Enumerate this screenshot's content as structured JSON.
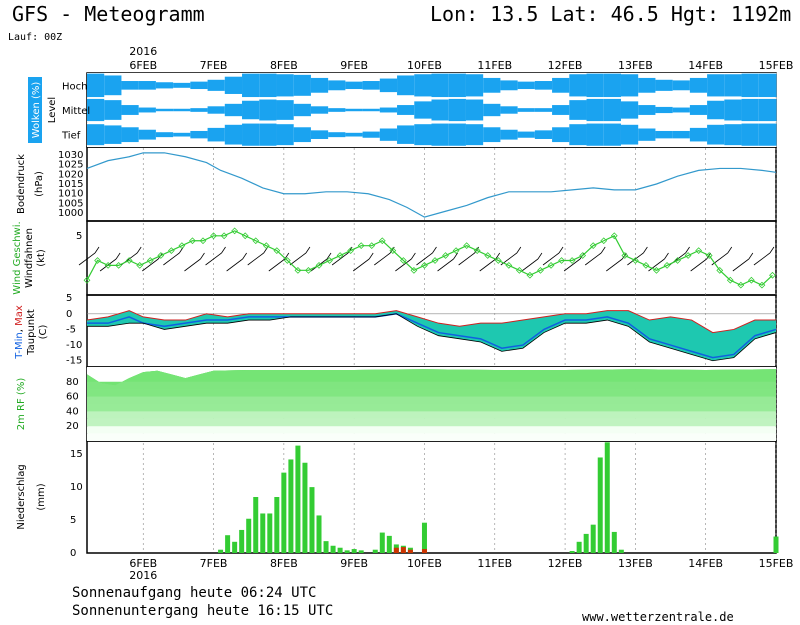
{
  "header": {
    "title": "GFS - Meteogramm",
    "location": "Lon: 13.5  Lat: 46.5  Hgt: 1192m",
    "run": "Lauf: 00Z"
  },
  "footer": {
    "sunrise": "Sonnenaufgang heute 06:24 UTC",
    "sunset": "Sonnenuntergang heute 16:15 UTC",
    "site": "www.wetterzentrale.de"
  },
  "colors": {
    "cloud": "#1aa3f0",
    "pressure": "#3399cc",
    "wind": "#33cc33",
    "rain": "#33cc33",
    "rain_other": "#cc3300",
    "rh": "#00dd00"
  },
  "chart_data": [
    {
      "type": "heatmap",
      "panel": "clouds",
      "ylabel": "Wolken (%)",
      "side_label": "Level",
      "levels": [
        "Hoch",
        "Mittel",
        "Tief"
      ],
      "x_ticks": [
        "6FEB",
        "7FEB",
        "8FEB",
        "9FEB",
        "10FEB",
        "11FEB",
        "12FEB",
        "13FEB",
        "14FEB",
        "15FEB"
      ],
      "year": "2016",
      "x_range_days": [
        5.2,
        15
      ],
      "cover_high": [
        95,
        80,
        35,
        35,
        25,
        20,
        30,
        45,
        70,
        95,
        95,
        90,
        85,
        60,
        40,
        30,
        35,
        55,
        80,
        90,
        95,
        95,
        90,
        60,
        40,
        30,
        35,
        60,
        90,
        95,
        95,
        90,
        60,
        45,
        40,
        60,
        90,
        90,
        95,
        95
      ],
      "cover_mid": [
        90,
        80,
        40,
        20,
        10,
        10,
        15,
        30,
        50,
        75,
        85,
        80,
        50,
        30,
        15,
        10,
        10,
        20,
        40,
        70,
        85,
        90,
        85,
        50,
        30,
        15,
        15,
        40,
        80,
        90,
        90,
        70,
        40,
        25,
        20,
        40,
        75,
        85,
        90,
        90
      ],
      "cover_low": [
        85,
        75,
        60,
        40,
        20,
        15,
        30,
        55,
        80,
        90,
        90,
        85,
        60,
        35,
        20,
        15,
        25,
        50,
        75,
        85,
        90,
        90,
        85,
        60,
        40,
        25,
        35,
        60,
        85,
        90,
        90,
        80,
        50,
        30,
        30,
        55,
        80,
        85,
        90,
        90
      ]
    },
    {
      "type": "line",
      "panel": "pressure",
      "ylabel": "Bodendruck (hPa)",
      "yticks": [
        1000,
        1005,
        1010,
        1015,
        1020,
        1025,
        1030
      ],
      "ylim": [
        996,
        1034
      ],
      "x_days": [
        5.2,
        5.5,
        5.8,
        6.0,
        6.3,
        6.6,
        6.9,
        7.1,
        7.4,
        7.7,
        8.0,
        8.3,
        8.6,
        8.9,
        9.2,
        9.5,
        9.75,
        10.0,
        10.3,
        10.6,
        10.9,
        11.2,
        11.5,
        11.8,
        12.1,
        12.4,
        12.7,
        13.0,
        13.3,
        13.6,
        13.9,
        14.2,
        14.5,
        14.8,
        15.0
      ],
      "values": [
        1023,
        1027,
        1029,
        1031,
        1031,
        1029,
        1026,
        1022,
        1018,
        1013,
        1010,
        1010,
        1011,
        1011,
        1010,
        1007,
        1003,
        998,
        1001,
        1004,
        1008,
        1011,
        1011,
        1011,
        1012,
        1013,
        1012,
        1012,
        1015,
        1019,
        1022,
        1023,
        1023,
        1022,
        1021
      ]
    },
    {
      "type": "line",
      "panel": "wind",
      "ylabel": "Wind Geschwi. Windfahnen (kt)",
      "yticks": [
        5
      ],
      "ylim": [
        -7,
        8
      ],
      "x_days": [
        5.2,
        5.35,
        5.5,
        5.65,
        5.8,
        5.95,
        6.1,
        6.25,
        6.4,
        6.55,
        6.7,
        6.85,
        7.0,
        7.15,
        7.3,
        7.45,
        7.6,
        7.75,
        7.9,
        8.05,
        8.2,
        8.35,
        8.5,
        8.65,
        8.8,
        8.95,
        9.1,
        9.25,
        9.4,
        9.55,
        9.7,
        9.85,
        10.0,
        10.15,
        10.3,
        10.45,
        10.6,
        10.75,
        10.9,
        11.05,
        11.2,
        11.35,
        11.5,
        11.65,
        11.8,
        11.95,
        12.1,
        12.25,
        12.4,
        12.55,
        12.7,
        12.85,
        13.0,
        13.15,
        13.3,
        13.45,
        13.6,
        13.75,
        13.9,
        14.05,
        14.2,
        14.35,
        14.5,
        14.65,
        14.8,
        14.95
      ],
      "values": [
        -4,
        0,
        -1,
        -1,
        0,
        -1,
        0,
        1,
        2,
        3,
        4,
        4,
        5,
        5,
        6,
        5,
        4,
        3,
        2,
        0,
        -2,
        -2,
        -1,
        0,
        1,
        2,
        3,
        3,
        4,
        2,
        0,
        -2,
        -1,
        0,
        1,
        2,
        3,
        2,
        1,
        0,
        -1,
        -2,
        -3,
        -2,
        -1,
        0,
        0,
        1,
        3,
        4,
        5,
        1,
        0,
        -1,
        -2,
        -1,
        0,
        1,
        2,
        1,
        -2,
        -4,
        -5,
        -4,
        -5,
        -3
      ],
      "barb_rows": 2
    },
    {
      "type": "area",
      "panel": "temperature",
      "ylabel": "T-Min, Max Taupunkt (C)",
      "yticks": [
        5,
        0,
        -5,
        -10,
        -15
      ],
      "ylim": [
        -17,
        6
      ],
      "x_days": [
        5.2,
        5.5,
        5.8,
        6.0,
        6.3,
        6.6,
        6.9,
        7.2,
        7.5,
        7.8,
        8.1,
        8.4,
        8.7,
        9.0,
        9.3,
        9.6,
        9.9,
        10.2,
        10.5,
        10.8,
        11.1,
        11.4,
        11.7,
        12.0,
        12.3,
        12.6,
        12.9,
        13.2,
        13.5,
        13.8,
        14.1,
        14.4,
        14.7,
        15.0
      ],
      "t_max": [
        -2,
        -1,
        1,
        -1,
        -2,
        -2,
        0,
        -1,
        0,
        0,
        0,
        0,
        0,
        0,
        0,
        1,
        -1,
        -3,
        -4,
        -3,
        -3,
        -2,
        -1,
        0,
        0,
        1,
        1,
        -2,
        -1,
        -2,
        -6,
        -5,
        -2,
        -2
      ],
      "t_min": [
        -3,
        -3,
        -1,
        -3,
        -4,
        -3,
        -2,
        -2,
        -1,
        -1,
        -1,
        -1,
        -1,
        -1,
        -1,
        0,
        -3,
        -6,
        -7,
        -8,
        -11,
        -10,
        -5,
        -2,
        -2,
        -1,
        -3,
        -8,
        -10,
        -12,
        -14,
        -13,
        -7,
        -5
      ],
      "dewpoint": [
        -4,
        -4,
        -3,
        -3,
        -5,
        -4,
        -3,
        -3,
        -2,
        -2,
        -1,
        -1,
        -1,
        -1,
        -1,
        0,
        -4,
        -7,
        -8,
        -9,
        -12,
        -11,
        -6,
        -3,
        -3,
        -2,
        -4,
        -9,
        -11,
        -13,
        -15,
        -14,
        -8,
        -6
      ]
    },
    {
      "type": "area",
      "panel": "humidity",
      "ylabel": "2m RF (%)",
      "yticks": [
        20,
        40,
        60,
        80
      ],
      "ylim": [
        0,
        100
      ],
      "x_days": [
        5.2,
        5.4,
        5.6,
        5.8,
        6.0,
        6.2,
        6.4,
        6.6,
        6.8,
        7.0,
        7.5,
        8.0,
        9.0,
        10.0,
        11.0,
        12.0,
        13.0,
        14.0,
        15.0
      ],
      "values": [
        90,
        78,
        75,
        85,
        93,
        95,
        90,
        85,
        90,
        95,
        96,
        96,
        96,
        97,
        96,
        96,
        97,
        96,
        97
      ]
    },
    {
      "type": "bar",
      "panel": "precipitation",
      "ylabel": "Niederschlag (mm)",
      "yticks": [
        0,
        5,
        10,
        15
      ],
      "ylim": [
        0,
        17
      ],
      "x_days": [
        7.1,
        7.2,
        7.3,
        7.4,
        7.5,
        7.6,
        7.7,
        7.8,
        7.9,
        8.0,
        8.1,
        8.2,
        8.3,
        8.4,
        8.5,
        8.6,
        8.7,
        8.8,
        8.9,
        9.0,
        9.1,
        9.3,
        9.4,
        9.5,
        9.6,
        9.7,
        9.8,
        10.0,
        12.1,
        12.2,
        12.3,
        12.4,
        12.5,
        12.6,
        12.7,
        12.8,
        15.0
      ],
      "values": [
        0.5,
        2.7,
        1.7,
        3.5,
        5.2,
        8.5,
        6.0,
        6.0,
        8.5,
        12.2,
        14.2,
        16.3,
        13.7,
        10.0,
        5.7,
        1.8,
        1.1,
        0.8,
        0.4,
        0.6,
        0.4,
        0.5,
        3.1,
        2.6,
        1.3,
        1.1,
        0.8,
        4.6,
        0.3,
        1.7,
        2.9,
        4.3,
        14.5,
        16.8,
        3.2,
        0.5,
        2.5
      ],
      "other_days": [
        9.6,
        9.7,
        9.8,
        10.0
      ],
      "other_values": [
        0.8,
        0.9,
        0.5,
        0.6
      ]
    }
  ]
}
